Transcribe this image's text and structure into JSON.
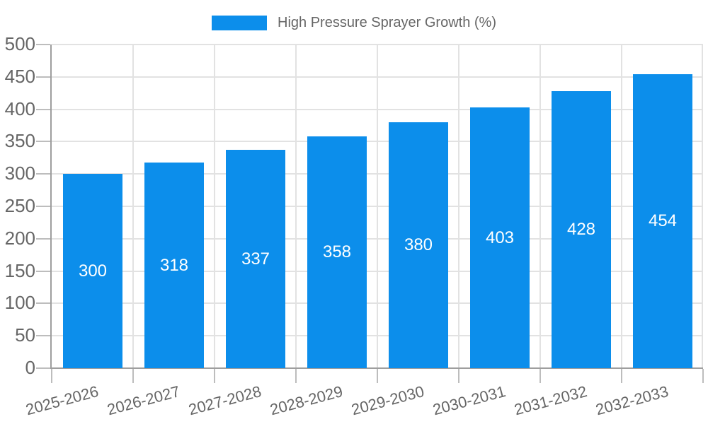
{
  "legend": {
    "label": "High Pressure Sprayer Growth (%)"
  },
  "chart_data": {
    "type": "bar",
    "title": "",
    "series_name": "High Pressure Sprayer Growth (%)",
    "categories": [
      "2025-2026",
      "2026-2027",
      "2027-2028",
      "2028-2029",
      "2029-2030",
      "2030-2031",
      "2031-2032",
      "2032-2033"
    ],
    "values": [
      300,
      318,
      337,
      358,
      380,
      403,
      428,
      454
    ],
    "xlabel": "",
    "ylabel": "",
    "ylim": [
      0,
      500
    ],
    "ytick_step": 50,
    "ytick_labels": [
      "0",
      "50",
      "100",
      "150",
      "200",
      "250",
      "300",
      "350",
      "400",
      "450",
      "500"
    ],
    "grid": true,
    "legend_position": "top-center",
    "bar_label_position": "center",
    "bar_label_color": "#ffffff",
    "colors": {
      "bar": "#0c8eeb",
      "text": "#666666",
      "grid": "#e2e2e2",
      "axis": "#9e9e9e",
      "tick": "#bdbdbd",
      "background": "#ffffff"
    }
  }
}
